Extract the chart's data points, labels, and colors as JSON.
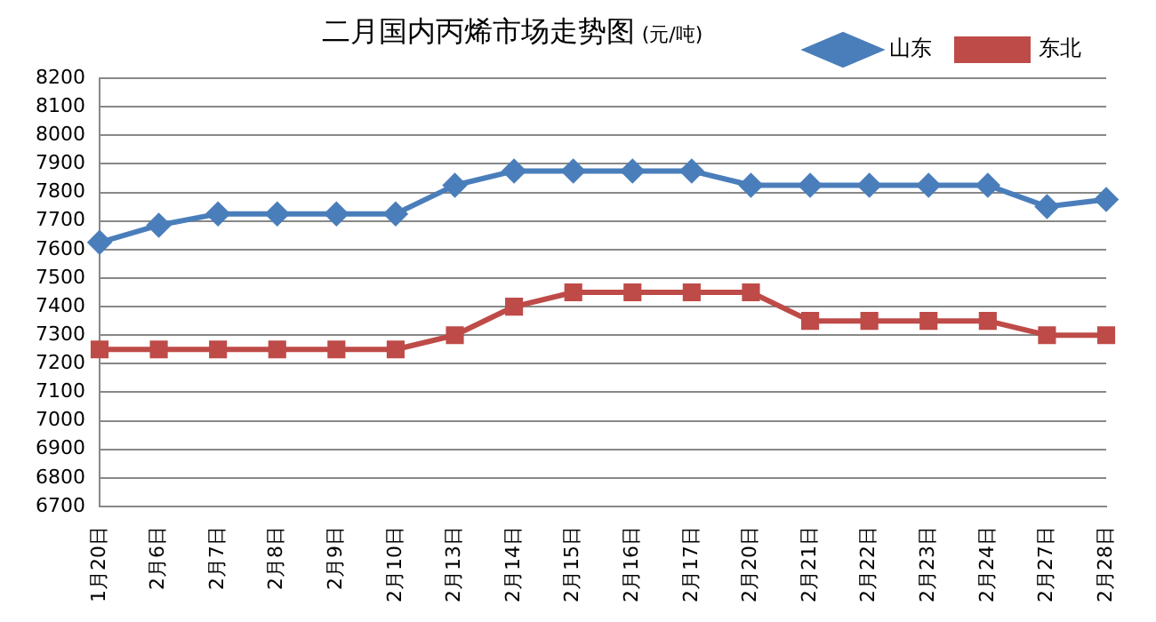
{
  "chart_data": {
    "type": "line",
    "title": "二月国内丙烯市场走势图",
    "subtitle": "(元/吨)",
    "categories": [
      "1月20日",
      "2月6日",
      "2月7日",
      "2月8日",
      "2月9日",
      "2月10日",
      "2月13日",
      "2月14日",
      "2月15日",
      "2月16日",
      "2月17日",
      "2月20日",
      "2月21日",
      "2月22日",
      "2月23日",
      "2月24日",
      "2月27日",
      "2月28日"
    ],
    "series": [
      {
        "name": "山东",
        "color": "#4a7ebb",
        "marker": "diamond",
        "values": [
          7625,
          7685,
          7725,
          7725,
          7725,
          7725,
          7825,
          7875,
          7875,
          7875,
          7875,
          7825,
          7825,
          7825,
          7825,
          7825,
          7750,
          7775
        ]
      },
      {
        "name": "东北",
        "color": "#be4b48",
        "marker": "square",
        "values": [
          7250,
          7250,
          7250,
          7250,
          7250,
          7250,
          7300,
          7400,
          7450,
          7450,
          7450,
          7450,
          7350,
          7350,
          7350,
          7350,
          7300,
          7300
        ]
      }
    ],
    "ylim": [
      6700,
      8200
    ],
    "yticks": [
      6700,
      6800,
      6900,
      7000,
      7100,
      7200,
      7300,
      7400,
      7500,
      7600,
      7700,
      7800,
      7900,
      8000,
      8100,
      8200
    ],
    "grid": "y",
    "legend": "top right",
    "line_style": "solid"
  }
}
